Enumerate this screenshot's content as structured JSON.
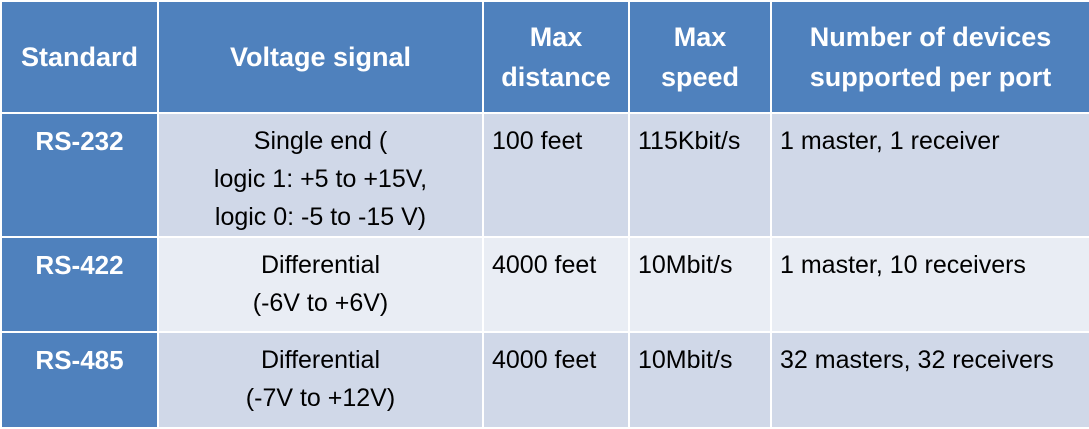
{
  "headers": {
    "standard": "Standard",
    "voltage": "Voltage signal",
    "distance": [
      "Max",
      "distance"
    ],
    "speed": [
      "Max",
      "speed"
    ],
    "devices": [
      "Number of devices",
      "supported per port"
    ]
  },
  "rows": [
    {
      "standard": "RS-232",
      "voltage": [
        "Single end (",
        "logic 1: +5 to +15V,",
        "logic 0: -5 to -15 V)"
      ],
      "distance": "100 feet",
      "speed": "115Kbit/s",
      "devices": "1 master, 1 receiver"
    },
    {
      "standard": "RS-422",
      "voltage": [
        "Differential",
        "(-6V to +6V)"
      ],
      "distance": "4000 feet",
      "speed": "10Mbit/s",
      "devices": "1 master, 10 receivers"
    },
    {
      "standard": "RS-485",
      "voltage": [
        "Differential",
        "(-7V to +12V)"
      ],
      "distance": "4000 feet",
      "speed": "10Mbit/s",
      "devices": "32 masters, 32 receivers"
    }
  ],
  "colors": {
    "header_bg": "#4f81bd",
    "row_odd_bg": "#d0d8e8",
    "row_even_bg": "#e9edf4",
    "header_text": "#ffffff"
  }
}
